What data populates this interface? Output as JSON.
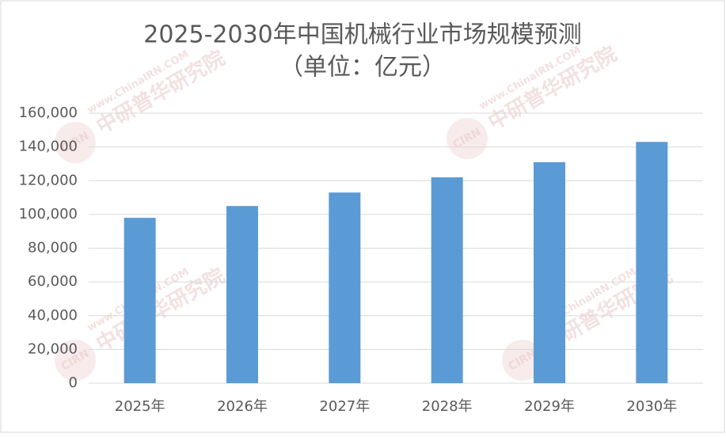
{
  "chart_data": {
    "type": "bar",
    "title": "2025-2030年中国机械行业市场规模预测",
    "subtitle": "（单位：亿元）",
    "categories": [
      "2025年",
      "2026年",
      "2027年",
      "2028年",
      "2029年",
      "2030年"
    ],
    "values": [
      98000,
      105000,
      113000,
      122000,
      131000,
      143000
    ],
    "color": "#5b9bd5",
    "ylim": [
      0,
      160000
    ],
    "yticks": [
      0,
      {
        "value": 20000,
        "label": "20,000"
      },
      {
        "value": 40000,
        "label": "40,000"
      },
      {
        "value": 60000,
        "label": "60,000"
      },
      {
        "value": 80000,
        "label": "80,000"
      },
      {
        "value": 100000,
        "label": "100,000"
      },
      {
        "value": 120000,
        "label": "120,000"
      },
      {
        "value": 140000,
        "label": "140,000"
      },
      {
        "value": 160000,
        "label": "160,000"
      }
    ],
    "grid": true,
    "watermark": {
      "name": "中研普华研究院",
      "url": "www.ChinaIRN.COM",
      "logo": "CIRN"
    }
  }
}
